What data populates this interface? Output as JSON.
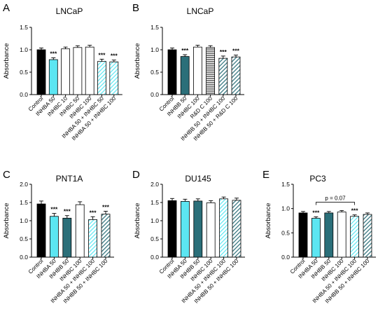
{
  "colors": {
    "black": "#000000",
    "light_cyan": "#5ce6f2",
    "dark_teal": "#2b6f79",
    "white": "#ffffff",
    "axis": "#000000"
  },
  "chart_data": [
    {
      "panel": "A",
      "type": "bar",
      "title": "LNCaP",
      "ylabel": "Absorbance",
      "ylim": [
        0,
        1.5
      ],
      "yticks": [
        "0.0",
        "0.5",
        "1.0",
        "1.5"
      ],
      "categories": [
        "Control",
        "INHBA 50",
        "INHBC 10",
        "INHBC 50",
        "INHBC 100",
        "INHBA 50 + INHBC 50",
        "INHBA 50 + INHBC 100"
      ],
      "values": [
        1.0,
        0.78,
        1.02,
        1.05,
        1.06,
        0.74,
        0.73
      ],
      "errors": [
        0.04,
        0.04,
        0.04,
        0.04,
        0.04,
        0.05,
        0.04
      ],
      "fills": [
        "black",
        "light_cyan",
        "white",
        "white",
        "white",
        "cyan_hatch",
        "cyan_hatch"
      ],
      "significance": [
        "",
        "***",
        "",
        "",
        "",
        "***",
        "***"
      ]
    },
    {
      "panel": "B",
      "type": "bar",
      "title": "LNCaP",
      "ylabel": "Absorbance",
      "ylim": [
        0,
        1.5
      ],
      "yticks": [
        "0.0",
        "0.5",
        "1.0",
        "1.5"
      ],
      "categories": [
        "Control",
        "INHBB 50",
        "INHBC 100",
        "R&D C 100",
        "INHBB 50 + INHBC 100",
        "INHBB 50 + R&D C 100"
      ],
      "values": [
        1.0,
        0.85,
        1.06,
        1.05,
        0.81,
        0.84
      ],
      "errors": [
        0.04,
        0.04,
        0.04,
        0.04,
        0.05,
        0.04
      ],
      "fills": [
        "black",
        "dark_teal",
        "white",
        "hlines",
        "teal_hatch",
        "teal_hatch"
      ],
      "significance": [
        "",
        "***",
        "",
        "",
        "***",
        "***"
      ]
    },
    {
      "panel": "C",
      "type": "bar",
      "title": "PNT1A",
      "ylabel": "Absorbance",
      "ylim": [
        0,
        2.0
      ],
      "yticks": [
        "0.0",
        "0.5",
        "1.0",
        "1.5",
        "2.0"
      ],
      "categories": [
        "Control",
        "INHBA 50",
        "INHBB 50",
        "INHBC 100",
        "INHBA 50 + INHBC 100",
        "INHBB 50 + INHBC 100"
      ],
      "values": [
        1.46,
        1.12,
        1.07,
        1.44,
        1.03,
        1.18
      ],
      "errors": [
        0.08,
        0.08,
        0.07,
        0.08,
        0.08,
        0.08
      ],
      "fills": [
        "black",
        "light_cyan",
        "dark_teal",
        "white",
        "cyan_hatch",
        "teal_hatch"
      ],
      "significance": [
        "",
        "***",
        "***",
        "",
        "***",
        "***"
      ]
    },
    {
      "panel": "D",
      "type": "bar",
      "title": "DU145",
      "ylabel": "Absorbance",
      "ylim": [
        0,
        2.0
      ],
      "yticks": [
        "0.0",
        "0.5",
        "1.0",
        "1.5",
        "2.0"
      ],
      "categories": [
        "Control",
        "INHBA 50",
        "INHBB 50",
        "INHBC 100",
        "INHBA 50 + INHBC 100",
        "INHBB 50 + INHBC 100"
      ],
      "values": [
        1.55,
        1.53,
        1.54,
        1.49,
        1.6,
        1.56
      ],
      "errors": [
        0.06,
        0.06,
        0.06,
        0.06,
        0.05,
        0.06
      ],
      "fills": [
        "black",
        "light_cyan",
        "dark_teal",
        "white",
        "cyan_hatch",
        "teal_hatch"
      ],
      "significance": [
        "",
        "",
        "",
        "",
        "",
        ""
      ]
    },
    {
      "panel": "E",
      "type": "bar",
      "title": "PC3",
      "ylabel": "Absorbance",
      "ylim": [
        0,
        1.5
      ],
      "yticks": [
        "0.0",
        "0.5",
        "1.0",
        "1.5"
      ],
      "categories": [
        "Control",
        "INHBA 50",
        "INHBB 50",
        "INHBC 100",
        "INHBA 50 + INHBC 100",
        "INHBB 50 + INHBC 100"
      ],
      "values": [
        0.91,
        0.8,
        0.91,
        0.93,
        0.84,
        0.88
      ],
      "errors": [
        0.03,
        0.03,
        0.03,
        0.03,
        0.03,
        0.03
      ],
      "fills": [
        "black",
        "light_cyan",
        "dark_teal",
        "white",
        "cyan_hatch",
        "teal_hatch"
      ],
      "significance": [
        "",
        "***",
        "",
        "",
        "***",
        ""
      ],
      "annotation": "p = 0.07",
      "bracket": [
        1,
        4
      ]
    }
  ]
}
